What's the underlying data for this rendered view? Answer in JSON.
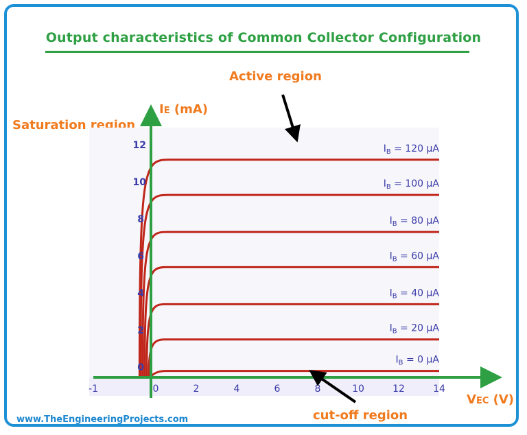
{
  "title": "Output characteristics of Common Collector Configuration",
  "footer": "www.TheEngineeringProjects.com",
  "regions": {
    "active": "Active region",
    "saturation": "Saturation region",
    "cutoff": "cut-off region"
  },
  "colors": {
    "frame": "#1e90d6",
    "title": "#2ea043",
    "axis": "#2ea043",
    "curve": "#c0261a",
    "label": "#f07a1e",
    "tick": "#3a3aa8"
  },
  "chart_data": {
    "type": "line",
    "x_axis": {
      "label_main": "V",
      "label_sub": "EC",
      "label_unit": " (V)",
      "ticks": [
        -1,
        0,
        2,
        4,
        6,
        8,
        10,
        12,
        14
      ],
      "range": [
        -1.5,
        18
      ]
    },
    "y_axis": {
      "label_main": "I",
      "label_sub": "E",
      "label_unit": " (mA)",
      "ticks": [
        0,
        2,
        4,
        6,
        8,
        10,
        12
      ],
      "range": [
        -0.5,
        15.5
      ]
    },
    "series": [
      {
        "name_main": "I",
        "name_sub": "B",
        "name_val": " = 120 μA",
        "ic": 11.6,
        "sat_start": -0.8,
        "sat_end": -0.1
      },
      {
        "name_main": "I",
        "name_sub": "B",
        "name_val": " = 100 μA",
        "ic": 9.7,
        "sat_start": -0.75,
        "sat_end": -0.15
      },
      {
        "name_main": "I",
        "name_sub": "B",
        "name_val": " = 80 μA",
        "ic": 7.7,
        "sat_start": -0.65,
        "sat_end": -0.2
      },
      {
        "name_main": "I",
        "name_sub": "B",
        "name_val": " = 60 μA",
        "ic": 5.8,
        "sat_start": -0.55,
        "sat_end": -0.25
      },
      {
        "name_main": "I",
        "name_sub": "B",
        "name_val": " = 40 μA",
        "ic": 3.8,
        "sat_start": -0.45,
        "sat_end": -0.3
      },
      {
        "name_main": "I",
        "name_sub": "B",
        "name_val": " = 20 μA",
        "ic": 1.9,
        "sat_start": -0.35,
        "sat_end": -0.3
      },
      {
        "name_main": "I",
        "name_sub": "B",
        "name_val": " = 0 μA",
        "ic": 0.2,
        "sat_start": -0.25,
        "sat_end": -0.25
      }
    ]
  }
}
